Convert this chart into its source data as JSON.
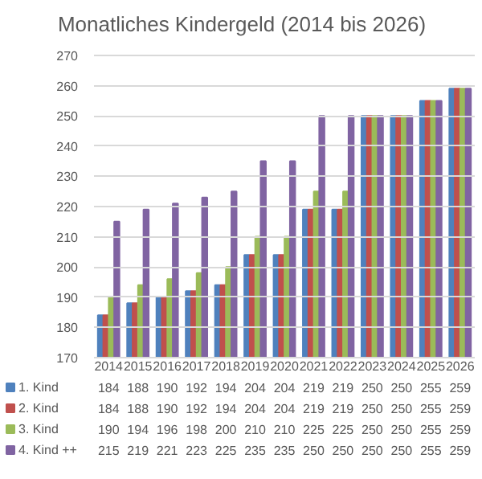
{
  "chart_data": {
    "type": "bar",
    "title": "Monatliches Kindergeld (2014 bis 2026)",
    "categories": [
      "2014",
      "2015",
      "2016",
      "2017",
      "2018",
      "2019",
      "2020",
      "2021",
      "2022",
      "2023",
      "2024",
      "2025",
      "2026"
    ],
    "series": [
      {
        "name": "1. Kind",
        "color": "#4f81bd",
        "values": [
          184,
          188,
          190,
          192,
          194,
          204,
          204,
          219,
          219,
          250,
          250,
          255,
          259
        ]
      },
      {
        "name": "2. Kind",
        "color": "#c0504d",
        "values": [
          184,
          188,
          190,
          192,
          194,
          204,
          204,
          219,
          219,
          250,
          250,
          255,
          259
        ]
      },
      {
        "name": "3. Kind",
        "color": "#9bbb59",
        "values": [
          190,
          194,
          196,
          198,
          200,
          210,
          210,
          225,
          225,
          250,
          250,
          255,
          259
        ]
      },
      {
        "name": "4. Kind ++",
        "color": "#8064a2",
        "values": [
          215,
          219,
          221,
          223,
          225,
          235,
          235,
          250,
          250,
          250,
          250,
          255,
          259
        ]
      }
    ],
    "ylim": [
      170,
      270
    ],
    "yticks": [
      170,
      180,
      190,
      200,
      210,
      220,
      230,
      240,
      250,
      260,
      270
    ],
    "grid": "y",
    "legend": "bottom",
    "data_labels": true
  }
}
